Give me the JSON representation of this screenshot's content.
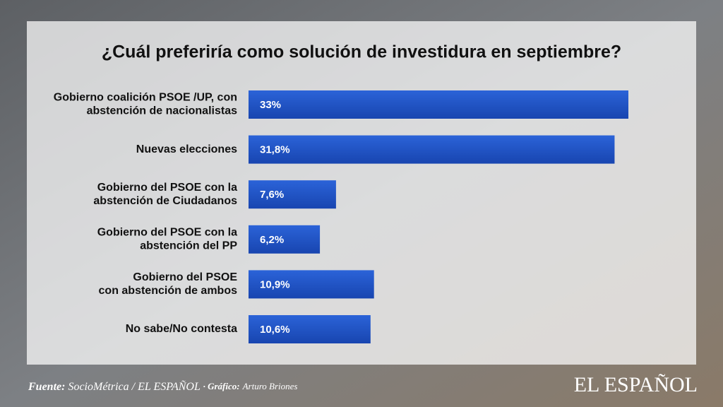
{
  "chart_data": {
    "type": "bar",
    "orientation": "horizontal",
    "title": "¿Cuál preferiría como solución de investidura en septiembre?",
    "categories": [
      [
        "Gobierno coalición PSOE /UP, con",
        "abstención de nacionalistas"
      ],
      [
        "Nuevas elecciones"
      ],
      [
        "Gobierno del PSOE con la",
        "abstención de Ciudadanos"
      ],
      [
        "Gobierno del PSOE con la",
        "abstención del PP"
      ],
      [
        "Gobierno del PSOE",
        "con abstención de ambos"
      ],
      [
        "No sabe/No contesta"
      ]
    ],
    "values": [
      33,
      31.8,
      7.6,
      6.2,
      10.9,
      10.6
    ],
    "value_labels": [
      "33%",
      "31,8%",
      "7,6%",
      "6,2%",
      "10,9%",
      "10,6%"
    ],
    "color": "#1f55c9"
  },
  "footer": {
    "source_label": "Fuente:",
    "source": "SocioMétrica / EL ESPAÑOL",
    "graphic_label": "· Gráfico:",
    "graphic": "Arturo Briones",
    "logo": "EL ESPAÑOL"
  }
}
